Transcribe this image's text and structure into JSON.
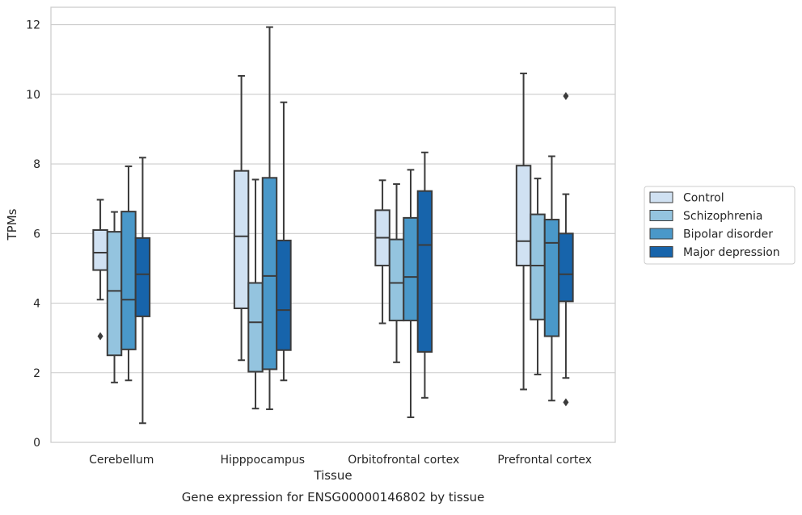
{
  "chart_data": {
    "type": "boxplot",
    "caption": "Gene expression for ENSG00000146802 by tissue",
    "xlabel": "Tissue",
    "ylabel": "TPMs",
    "ylim": [
      0,
      12.5
    ],
    "yticks": [
      0,
      2,
      4,
      6,
      8,
      10,
      12
    ],
    "grid": "horizontal",
    "legend_position": "right",
    "categories": [
      "Cerebellum",
      "Hipppocampus",
      "Orbitofrontal cortex",
      "Prefrontal cortex"
    ],
    "series": [
      {
        "name": "Control",
        "color": "#d0e1f2",
        "boxes": [
          {
            "whisker_low": 4.1,
            "q1": 4.95,
            "median": 5.45,
            "q3": 6.1,
            "whisker_high": 6.97,
            "outliers": [
              3.05
            ]
          },
          {
            "whisker_low": 2.36,
            "q1": 3.85,
            "median": 5.92,
            "q3": 7.8,
            "whisker_high": 10.53,
            "outliers": []
          },
          {
            "whisker_low": 3.42,
            "q1": 5.08,
            "median": 5.88,
            "q3": 6.67,
            "whisker_high": 7.53,
            "outliers": []
          },
          {
            "whisker_low": 1.52,
            "q1": 5.08,
            "median": 5.78,
            "q3": 7.95,
            "whisker_high": 10.6,
            "outliers": []
          }
        ]
      },
      {
        "name": "Schizophrenia",
        "color": "#94c4df",
        "boxes": [
          {
            "whisker_low": 1.72,
            "q1": 2.5,
            "median": 4.35,
            "q3": 6.05,
            "whisker_high": 6.62,
            "outliers": []
          },
          {
            "whisker_low": 0.97,
            "q1": 2.03,
            "median": 3.45,
            "q3": 4.58,
            "whisker_high": 7.55,
            "outliers": []
          },
          {
            "whisker_low": 2.3,
            "q1": 3.5,
            "median": 4.58,
            "q3": 5.83,
            "whisker_high": 7.42,
            "outliers": []
          },
          {
            "whisker_low": 1.95,
            "q1": 3.53,
            "median": 5.08,
            "q3": 6.55,
            "whisker_high": 7.58,
            "outliers": []
          }
        ]
      },
      {
        "name": "Bipolar disorder",
        "color": "#4a98c9",
        "boxes": [
          {
            "whisker_low": 1.78,
            "q1": 2.67,
            "median": 4.1,
            "q3": 6.63,
            "whisker_high": 7.93,
            "outliers": []
          },
          {
            "whisker_low": 0.95,
            "q1": 2.1,
            "median": 4.78,
            "q3": 7.6,
            "whisker_high": 11.93,
            "outliers": []
          },
          {
            "whisker_low": 0.72,
            "q1": 3.5,
            "median": 4.75,
            "q3": 6.45,
            "whisker_high": 7.83,
            "outliers": []
          },
          {
            "whisker_low": 1.2,
            "q1": 3.05,
            "median": 5.73,
            "q3": 6.4,
            "whisker_high": 8.22,
            "outliers": []
          }
        ]
      },
      {
        "name": "Major depression",
        "color": "#1764ab",
        "boxes": [
          {
            "whisker_low": 0.55,
            "q1": 3.62,
            "median": 4.83,
            "q3": 5.87,
            "whisker_high": 8.18,
            "outliers": []
          },
          {
            "whisker_low": 1.78,
            "q1": 2.65,
            "median": 3.8,
            "q3": 5.8,
            "whisker_high": 9.77,
            "outliers": []
          },
          {
            "whisker_low": 1.28,
            "q1": 2.6,
            "median": 5.67,
            "q3": 7.22,
            "whisker_high": 8.33,
            "outliers": []
          },
          {
            "whisker_low": 1.85,
            "q1": 4.05,
            "median": 4.83,
            "q3": 6.0,
            "whisker_high": 7.13,
            "outliers": [
              1.15,
              9.95
            ]
          }
        ]
      }
    ]
  }
}
